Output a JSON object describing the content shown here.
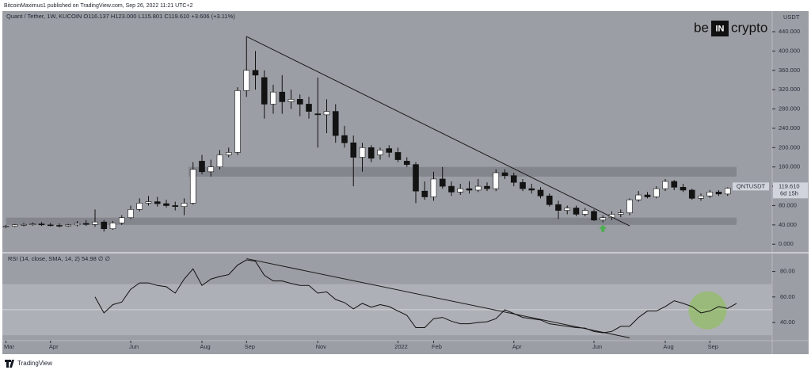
{
  "publisher": "BitcoinMaximus1 published on TradingView.com, Sep 26, 2022 11:21 UTC+2",
  "footer": "TradingView",
  "logo": {
    "left": "be",
    "middle": "IN",
    "right": "crypto"
  },
  "chart_data": {
    "type": "candlestick",
    "title": "Quant / Tether, 1W, KUCOIN",
    "ohlc_header": [
      "O116.137",
      "H123.000",
      "L115.801",
      "C119.610",
      "+3.606 (+3.11%)"
    ],
    "categories": [
      null,
      null,
      null,
      null,
      null,
      null,
      null,
      null,
      null,
      null,
      null,
      null,
      null,
      null,
      null,
      null,
      null,
      null,
      null,
      null,
      null,
      null,
      null,
      null,
      null,
      null,
      null,
      null,
      null,
      null,
      null,
      null,
      null,
      null,
      null,
      null,
      null,
      null,
      null,
      null,
      null,
      null,
      null,
      null,
      null,
      null,
      null,
      null,
      null,
      null,
      null,
      null,
      null,
      null,
      null,
      null,
      null,
      null,
      null,
      null,
      null,
      null,
      null,
      null,
      null,
      null,
      null,
      null,
      null,
      null,
      null,
      null,
      null,
      null,
      null,
      null,
      null,
      null,
      null,
      null,
      null,
      null,
      null
    ],
    "open": [
      36,
      37,
      40,
      41,
      42,
      40,
      39,
      38,
      40,
      43,
      41,
      46,
      32,
      44,
      55,
      72,
      85,
      88,
      84,
      80,
      78,
      85,
      172,
      150,
      160,
      185,
      190,
      318,
      360,
      345,
      290,
      315,
      295,
      300,
      290,
      270,
      268,
      275,
      225,
      210,
      180,
      200,
      185,
      198,
      190,
      172,
      165,
      110,
      98,
      135,
      120,
      108,
      115,
      112,
      120,
      115,
      148,
      142,
      128,
      115,
      112,
      100,
      82,
      70,
      75,
      62,
      68,
      50,
      55,
      62,
      65,
      92,
      102,
      98,
      115,
      130,
      118,
      112,
      95,
      100,
      108,
      104,
      116.137
    ],
    "high": [
      40,
      42,
      44,
      45,
      46,
      44,
      43,
      42,
      48,
      50,
      72,
      50,
      48,
      60,
      80,
      95,
      100,
      98,
      92,
      88,
      95,
      170,
      185,
      175,
      195,
      200,
      325,
      430,
      400,
      360,
      330,
      350,
      320,
      310,
      305,
      345,
      300,
      290,
      245,
      225,
      210,
      205,
      200,
      205,
      200,
      180,
      170,
      130,
      150,
      160,
      130,
      125,
      130,
      135,
      128,
      155,
      155,
      148,
      135,
      125,
      118,
      105,
      90,
      80,
      80,
      75,
      72,
      60,
      68,
      72,
      95,
      110,
      108,
      120,
      135,
      133,
      125,
      115,
      105,
      112,
      112,
      118,
      123
    ],
    "low": [
      33,
      35,
      37,
      38,
      38,
      37,
      35,
      36,
      37,
      38,
      36,
      26,
      30,
      40,
      52,
      68,
      80,
      78,
      76,
      70,
      60,
      82,
      145,
      140,
      155,
      180,
      185,
      305,
      320,
      260,
      270,
      270,
      280,
      265,
      260,
      200,
      230,
      210,
      200,
      120,
      150,
      170,
      175,
      180,
      170,
      160,
      85,
      92,
      90,
      115,
      100,
      102,
      105,
      108,
      110,
      110,
      135,
      120,
      110,
      105,
      95,
      78,
      52,
      62,
      58,
      58,
      48,
      45,
      50,
      56,
      60,
      88,
      95,
      95,
      110,
      112,
      108,
      92,
      90,
      96,
      100,
      100,
      115.801
    ],
    "close": [
      37,
      40,
      41,
      42,
      40,
      39,
      38,
      40,
      43,
      41,
      46,
      32,
      44,
      55,
      72,
      85,
      88,
      84,
      80,
      78,
      85,
      155,
      150,
      160,
      185,
      190,
      318,
      360,
      350,
      290,
      315,
      295,
      300,
      290,
      275,
      268,
      275,
      225,
      210,
      180,
      200,
      178,
      195,
      190,
      175,
      165,
      110,
      98,
      135,
      120,
      108,
      115,
      112,
      120,
      115,
      148,
      142,
      128,
      115,
      112,
      100,
      82,
      70,
      75,
      62,
      70,
      50,
      55,
      62,
      65,
      92,
      102,
      98,
      115,
      130,
      118,
      112,
      95,
      100,
      108,
      104,
      116.004,
      119.61
    ],
    "ylim": [
      -16,
      481
    ],
    "yticks": [
      {
        "value": 0,
        "label": "0.000"
      },
      {
        "value": 40,
        "label": "40.000"
      },
      {
        "value": 80,
        "label": "80.000"
      },
      {
        "value": 120,
        "label": "120.000"
      },
      {
        "value": 160,
        "label": "160.000"
      },
      {
        "value": 200,
        "label": "200.000"
      },
      {
        "value": 240,
        "label": "240.000"
      },
      {
        "value": 280,
        "label": "280.000"
      },
      {
        "value": 320,
        "label": "320.000"
      },
      {
        "value": 360,
        "label": "360.000"
      },
      {
        "value": 400,
        "label": "400.000"
      },
      {
        "value": 440,
        "label": "440.000"
      }
    ],
    "y_axis_label": "USDT",
    "xticks": [
      {
        "value": 0,
        "label": "Mar"
      },
      {
        "value": 5,
        "label": "Apr"
      },
      {
        "value": 14,
        "label": "Jun"
      },
      {
        "value": 22,
        "label": "Aug"
      },
      {
        "value": 27,
        "label": "Sep"
      },
      {
        "value": 35,
        "label": "Nov"
      },
      {
        "value": 44,
        "label": "2022"
      },
      {
        "value": 48,
        "label": "Feb"
      },
      {
        "value": 57,
        "label": "Apr"
      },
      {
        "value": 66,
        "label": "Jun"
      },
      {
        "value": 74,
        "label": "Aug"
      },
      {
        "value": 79,
        "label": "Sep"
      }
    ],
    "symbol": "QNTUSDT",
    "last_price_label": "119.610",
    "countdown": "6d 15h",
    "zones": [
      {
        "start": 0,
        "from": 40,
        "to": 55
      },
      {
        "start": 20.5,
        "from": 140,
        "to": 160
      }
    ],
    "trendline": {
      "from": [
        27,
        430
      ],
      "to": [
        70,
        38
      ]
    },
    "signal_marker": {
      "index": 67,
      "value": 45,
      "color": "#4caf50"
    },
    "rsi": {
      "label": "RSI (14, close, SMA, 14, 2)",
      "value_label": "54.98",
      "extra": "∅ ∅",
      "values": [
        null,
        null,
        null,
        null,
        null,
        null,
        null,
        null,
        null,
        null,
        60,
        47.5,
        54,
        56,
        66,
        71,
        71,
        69,
        68,
        63,
        74,
        82,
        69,
        74,
        76,
        77.5,
        85,
        89,
        88,
        77,
        72.5,
        72.5,
        70.6,
        69,
        69,
        63,
        64,
        58,
        55.6,
        50.6,
        55,
        52,
        54,
        52.5,
        49,
        45.6,
        36,
        36,
        43,
        44,
        41,
        39,
        39,
        40,
        40.6,
        43,
        50,
        47,
        44,
        43,
        42,
        39,
        38,
        37,
        36,
        35.6,
        33,
        32,
        33,
        37,
        37,
        44,
        49,
        49,
        52.5,
        57,
        55,
        52.5,
        47.5,
        49,
        52.5,
        51,
        54.98
      ],
      "ylim": [
        27,
        94
      ],
      "yticks": [
        {
          "value": 40,
          "label": "40.00"
        },
        {
          "value": 60,
          "label": "60.00"
        },
        {
          "value": 80,
          "label": "80.00"
        }
      ],
      "bands": [
        30,
        70
      ],
      "midline": 50,
      "trendline": {
        "from": [
          27,
          90
        ],
        "to": [
          70,
          28
        ]
      },
      "highlight": {
        "index": 78.75,
        "value": 49.5,
        "color": "#8bc34a"
      }
    }
  }
}
